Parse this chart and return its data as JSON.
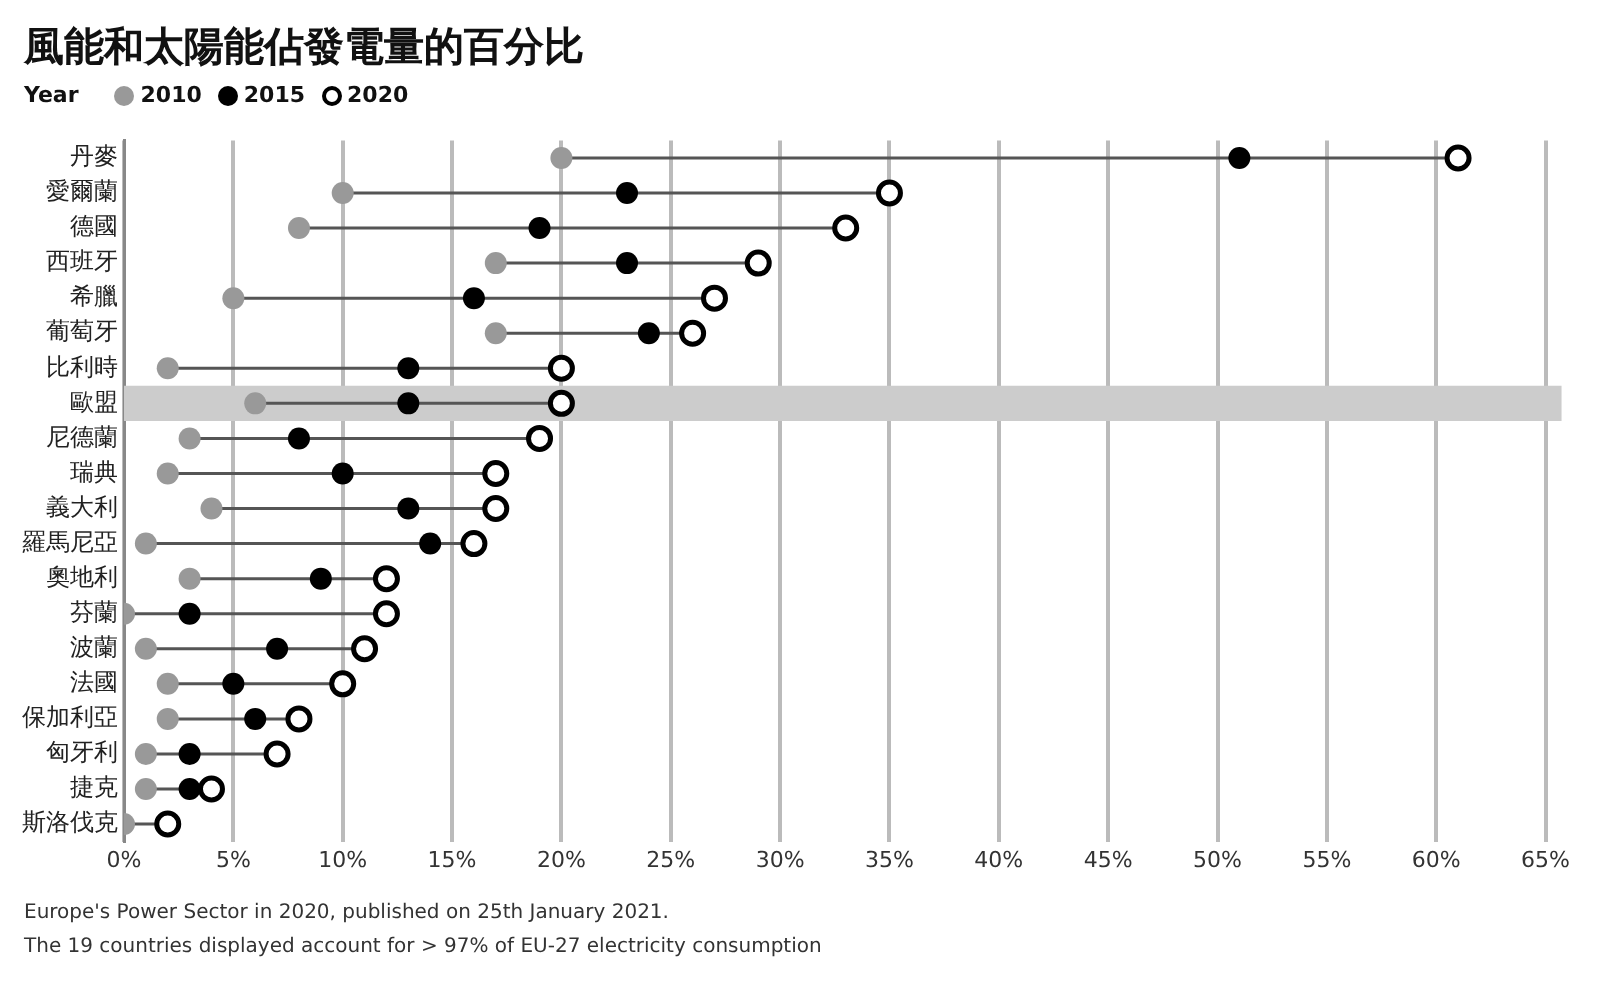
{
  "chart_data": {
    "type": "scatter",
    "orientation": "horizontal",
    "title": "風能和太陽能佔發電量的百分比",
    "legend_title": "Year",
    "legend": "top left",
    "categories": [
      "丹麥",
      "愛爾蘭",
      "德國",
      "西班牙",
      "希臘",
      "葡萄牙",
      "比利時",
      "歐盟",
      "尼德蘭",
      "瑞典",
      "義大利",
      "羅馬尼亞",
      "奧地利",
      "芬蘭",
      "波蘭",
      "法國",
      "保加利亞",
      "匈牙利",
      "捷克",
      "斯洛伐克"
    ],
    "series": [
      {
        "name": "2010",
        "color": "#999999",
        "values": [
          20,
          10,
          8,
          17,
          5,
          17,
          2,
          6,
          3,
          2,
          4,
          1,
          3,
          0,
          1,
          2,
          2,
          1,
          1,
          0
        ]
      },
      {
        "name": "2015",
        "color": "#000000",
        "values": [
          51,
          23,
          19,
          23,
          16,
          24,
          13,
          13,
          8,
          10,
          13,
          14,
          9,
          3,
          7,
          5,
          6,
          3,
          3,
          null
        ]
      },
      {
        "name": "2020",
        "color": "#000000",
        "values": [
          61,
          35,
          33,
          29,
          27,
          26,
          20,
          20,
          19,
          17,
          17,
          16,
          12,
          12,
          11,
          10,
          8,
          7,
          4,
          2
        ]
      }
    ],
    "xlim": [
      0,
      65
    ],
    "xticks": [
      {
        "value": 0,
        "label": "0%"
      },
      {
        "value": 5,
        "label": "5%"
      },
      {
        "value": 10,
        "label": "10%"
      },
      {
        "value": 15,
        "label": "15%"
      },
      {
        "value": 20,
        "label": "20%"
      },
      {
        "value": 25,
        "label": "25%"
      },
      {
        "value": 30,
        "label": "30%"
      },
      {
        "value": 35,
        "label": "35%"
      },
      {
        "value": 40,
        "label": "40%"
      },
      {
        "value": 45,
        "label": "45%"
      },
      {
        "value": 50,
        "label": "50%"
      },
      {
        "value": 55,
        "label": "55%"
      },
      {
        "value": 60,
        "label": "60%"
      },
      {
        "value": 65,
        "label": "65%"
      }
    ],
    "grid": "x",
    "marker": "circle",
    "bands": [
      {
        "axis": "y",
        "from": "歐盟",
        "to": "歐盟",
        "color": "#cccccc"
      }
    ],
    "annotations": [
      "Europe's Power Sector in 2020, published on 25th January 2021.",
      "The 19 countries displayed account for > 97% of EU-27 electricity consumption"
    ]
  }
}
